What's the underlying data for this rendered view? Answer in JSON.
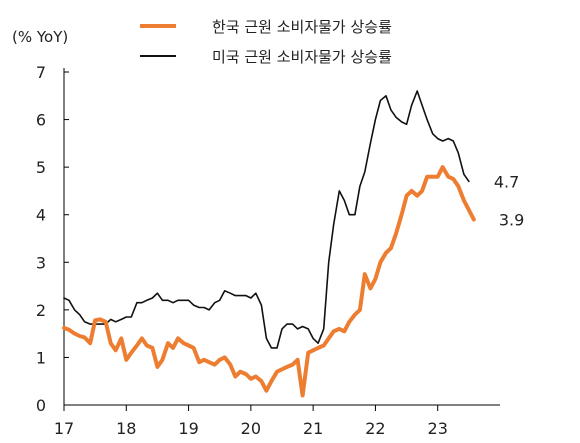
{
  "chart_data": {
    "type": "line",
    "ylabel": "(% YoY)",
    "ylim": [
      0,
      7
    ],
    "y_ticks": [
      "0",
      "1",
      "2",
      "3",
      "4",
      "5",
      "6",
      "7"
    ],
    "xlim": [
      2017.0,
      2024.0
    ],
    "x_ticks": [
      {
        "value": 2017.0,
        "label": "17"
      },
      {
        "value": 2018.0,
        "label": "18"
      },
      {
        "value": 2019.0,
        "label": "19"
      },
      {
        "value": 2020.0,
        "label": "20"
      },
      {
        "value": 2021.0,
        "label": "21"
      },
      {
        "value": 2022.0,
        "label": "22"
      },
      {
        "value": 2023.0,
        "label": "23"
      }
    ],
    "grid": false,
    "legend_position": "top",
    "series": [
      {
        "name": "한국 근원 소비자물가 상승률",
        "color": "#ED7D31",
        "end_label": "3.9",
        "points": [
          [
            2017.0,
            1.62
          ],
          [
            2017.08,
            1.58
          ],
          [
            2017.17,
            1.5
          ],
          [
            2017.25,
            1.45
          ],
          [
            2017.33,
            1.42
          ],
          [
            2017.42,
            1.3
          ],
          [
            2017.5,
            1.78
          ],
          [
            2017.58,
            1.8
          ],
          [
            2017.67,
            1.75
          ],
          [
            2017.75,
            1.3
          ],
          [
            2017.83,
            1.15
          ],
          [
            2017.92,
            1.4
          ],
          [
            2018.0,
            0.95
          ],
          [
            2018.08,
            1.1
          ],
          [
            2018.17,
            1.25
          ],
          [
            2018.25,
            1.4
          ],
          [
            2018.33,
            1.25
          ],
          [
            2018.42,
            1.2
          ],
          [
            2018.5,
            0.8
          ],
          [
            2018.58,
            0.95
          ],
          [
            2018.67,
            1.3
          ],
          [
            2018.75,
            1.2
          ],
          [
            2018.83,
            1.4
          ],
          [
            2018.92,
            1.3
          ],
          [
            2019.0,
            1.25
          ],
          [
            2019.08,
            1.2
          ],
          [
            2019.17,
            0.9
          ],
          [
            2019.25,
            0.95
          ],
          [
            2019.33,
            0.9
          ],
          [
            2019.42,
            0.85
          ],
          [
            2019.5,
            0.95
          ],
          [
            2019.58,
            1.0
          ],
          [
            2019.67,
            0.85
          ],
          [
            2019.75,
            0.6
          ],
          [
            2019.83,
            0.7
          ],
          [
            2019.92,
            0.65
          ],
          [
            2020.0,
            0.55
          ],
          [
            2020.08,
            0.6
          ],
          [
            2020.17,
            0.5
          ],
          [
            2020.25,
            0.3
          ],
          [
            2020.33,
            0.5
          ],
          [
            2020.42,
            0.7
          ],
          [
            2020.5,
            0.75
          ],
          [
            2020.58,
            0.8
          ],
          [
            2020.67,
            0.85
          ],
          [
            2020.75,
            0.95
          ],
          [
            2020.83,
            0.2
          ],
          [
            2020.92,
            1.1
          ],
          [
            2021.0,
            1.15
          ],
          [
            2021.08,
            1.2
          ],
          [
            2021.17,
            1.25
          ],
          [
            2021.25,
            1.4
          ],
          [
            2021.33,
            1.55
          ],
          [
            2021.42,
            1.6
          ],
          [
            2021.5,
            1.55
          ],
          [
            2021.58,
            1.75
          ],
          [
            2021.67,
            1.9
          ],
          [
            2021.75,
            2.0
          ],
          [
            2021.83,
            2.75
          ],
          [
            2021.92,
            2.45
          ],
          [
            2022.0,
            2.65
          ],
          [
            2022.08,
            3.0
          ],
          [
            2022.17,
            3.2
          ],
          [
            2022.25,
            3.3
          ],
          [
            2022.33,
            3.6
          ],
          [
            2022.42,
            4.0
          ],
          [
            2022.5,
            4.4
          ],
          [
            2022.58,
            4.5
          ],
          [
            2022.67,
            4.4
          ],
          [
            2022.75,
            4.5
          ],
          [
            2022.83,
            4.8
          ],
          [
            2022.92,
            4.8
          ],
          [
            2023.0,
            4.8
          ],
          [
            2023.08,
            5.0
          ],
          [
            2023.17,
            4.8
          ],
          [
            2023.25,
            4.75
          ],
          [
            2023.33,
            4.6
          ],
          [
            2023.42,
            4.3
          ],
          [
            2023.5,
            4.1
          ],
          [
            2023.58,
            3.9
          ]
        ]
      },
      {
        "name": "미국 근원 소비자물가 상승률",
        "color": "#111111",
        "end_label": "4.7",
        "points": [
          [
            2017.0,
            2.25
          ],
          [
            2017.08,
            2.2
          ],
          [
            2017.17,
            2.0
          ],
          [
            2017.25,
            1.9
          ],
          [
            2017.33,
            1.75
          ],
          [
            2017.42,
            1.7
          ],
          [
            2017.5,
            1.7
          ],
          [
            2017.58,
            1.7
          ],
          [
            2017.67,
            1.7
          ],
          [
            2017.75,
            1.8
          ],
          [
            2017.83,
            1.75
          ],
          [
            2017.92,
            1.8
          ],
          [
            2018.0,
            1.85
          ],
          [
            2018.08,
            1.85
          ],
          [
            2018.17,
            2.15
          ],
          [
            2018.25,
            2.15
          ],
          [
            2018.33,
            2.2
          ],
          [
            2018.42,
            2.25
          ],
          [
            2018.5,
            2.35
          ],
          [
            2018.58,
            2.2
          ],
          [
            2018.67,
            2.2
          ],
          [
            2018.75,
            2.15
          ],
          [
            2018.83,
            2.2
          ],
          [
            2018.92,
            2.2
          ],
          [
            2019.0,
            2.2
          ],
          [
            2019.08,
            2.1
          ],
          [
            2019.17,
            2.05
          ],
          [
            2019.25,
            2.05
          ],
          [
            2019.33,
            2.0
          ],
          [
            2019.42,
            2.15
          ],
          [
            2019.5,
            2.2
          ],
          [
            2019.58,
            2.4
          ],
          [
            2019.67,
            2.35
          ],
          [
            2019.75,
            2.3
          ],
          [
            2019.83,
            2.3
          ],
          [
            2019.92,
            2.3
          ],
          [
            2020.0,
            2.25
          ],
          [
            2020.08,
            2.35
          ],
          [
            2020.17,
            2.1
          ],
          [
            2020.25,
            1.4
          ],
          [
            2020.33,
            1.2
          ],
          [
            2020.42,
            1.2
          ],
          [
            2020.5,
            1.6
          ],
          [
            2020.58,
            1.7
          ],
          [
            2020.67,
            1.7
          ],
          [
            2020.75,
            1.6
          ],
          [
            2020.83,
            1.65
          ],
          [
            2020.92,
            1.6
          ],
          [
            2021.0,
            1.4
          ],
          [
            2021.08,
            1.3
          ],
          [
            2021.17,
            1.6
          ],
          [
            2021.25,
            3.0
          ],
          [
            2021.33,
            3.8
          ],
          [
            2021.42,
            4.5
          ],
          [
            2021.5,
            4.3
          ],
          [
            2021.58,
            4.0
          ],
          [
            2021.67,
            4.0
          ],
          [
            2021.75,
            4.6
          ],
          [
            2021.83,
            4.9
          ],
          [
            2021.92,
            5.5
          ],
          [
            2022.0,
            6.0
          ],
          [
            2022.08,
            6.4
          ],
          [
            2022.17,
            6.5
          ],
          [
            2022.25,
            6.2
          ],
          [
            2022.33,
            6.05
          ],
          [
            2022.42,
            5.95
          ],
          [
            2022.5,
            5.9
          ],
          [
            2022.58,
            6.3
          ],
          [
            2022.67,
            6.6
          ],
          [
            2022.75,
            6.3
          ],
          [
            2022.83,
            6.0
          ],
          [
            2022.92,
            5.7
          ],
          [
            2023.0,
            5.6
          ],
          [
            2023.08,
            5.55
          ],
          [
            2023.17,
            5.6
          ],
          [
            2023.25,
            5.55
          ],
          [
            2023.33,
            5.3
          ],
          [
            2023.42,
            4.85
          ],
          [
            2023.5,
            4.7
          ]
        ]
      }
    ]
  }
}
